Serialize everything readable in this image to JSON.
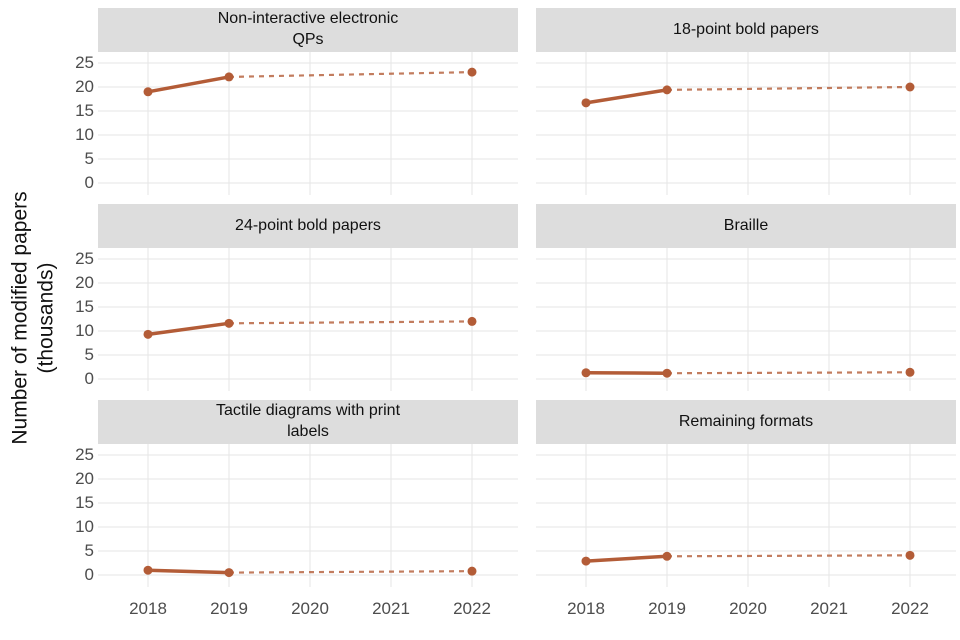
{
  "figure_title": "",
  "y_axis": {
    "title_line1": "Number of modified papers",
    "title_line2": "(thousands)",
    "tick_labels": [
      "25",
      "20",
      "15",
      "10",
      "5",
      "0"
    ],
    "tick_values": [
      25,
      20,
      15,
      10,
      5,
      0
    ]
  },
  "x_axis": {
    "tick_labels": [
      "2018",
      "2019",
      "2020",
      "2021",
      "2022"
    ],
    "tick_values": [
      2018,
      2019,
      2020,
      2021,
      2022
    ]
  },
  "colors": {
    "series_line": "#b35c37",
    "strip_background": "#dddddd",
    "gridline": "#e9e9e9",
    "tick_label": "#4d4d4d",
    "strip_text": "#111111"
  },
  "chart_data": {
    "type": "line",
    "x": [
      2018,
      2019,
      2022
    ],
    "x_domain": [
      2018,
      2022
    ],
    "ylim": [
      0,
      25
    ],
    "y_ticks": [
      0,
      5,
      10,
      15,
      20,
      25
    ],
    "grid": "major-only",
    "legend": "none",
    "ylabel": "Number of modified papers (thousands)",
    "xlabel": "",
    "segment_styles": [
      {
        "from": 2018,
        "to": 2019,
        "style": "solid"
      },
      {
        "from": 2019,
        "to": 2022,
        "style": "dashed"
      }
    ],
    "facets": [
      {
        "label": "Non-interactive electronic QPs",
        "title_lines": [
          "Non-interactive electronic",
          "QPs"
        ],
        "values": [
          19.0,
          22.1,
          23.1
        ]
      },
      {
        "label": "18-point bold papers",
        "title_lines": [
          "18-point bold papers"
        ],
        "values": [
          16.7,
          19.4,
          20.0
        ]
      },
      {
        "label": "24-point bold papers",
        "title_lines": [
          "24-point bold papers"
        ],
        "values": [
          9.3,
          11.6,
          12.0
        ]
      },
      {
        "label": "Braille",
        "title_lines": [
          "Braille"
        ],
        "values": [
          1.3,
          1.2,
          1.4
        ]
      },
      {
        "label": "Tactile diagrams with print labels",
        "title_lines": [
          "Tactile diagrams with print",
          "labels"
        ],
        "values": [
          1.0,
          0.5,
          0.8
        ]
      },
      {
        "label": "Remaining formats",
        "title_lines": [
          "Remaining formats"
        ],
        "values": [
          2.9,
          3.9,
          4.1
        ]
      }
    ]
  }
}
